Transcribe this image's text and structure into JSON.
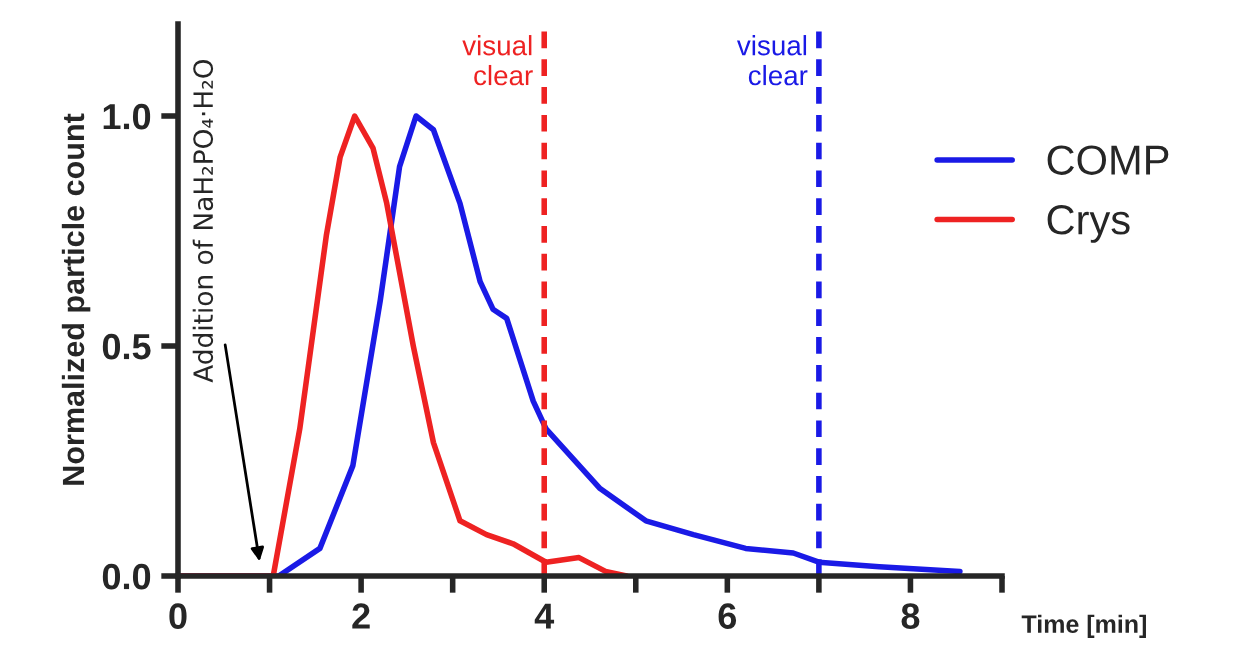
{
  "chart_data": {
    "type": "line",
    "xlabel": "Time [min]",
    "ylabel": "Normalized particle count",
    "xlim": [
      0,
      9
    ],
    "ylim": [
      0,
      1.2
    ],
    "xticks": [
      0,
      {
        "value": 1,
        "label": null
      },
      2,
      {
        "value": 3,
        "label": null
      },
      4,
      {
        "value": 5,
        "label": null
      },
      6,
      {
        "value": 7,
        "label": null
      },
      8,
      {
        "value": 9,
        "label": null
      }
    ],
    "yticks": [
      {
        "value": 0,
        "label": "0.0"
      },
      0.5,
      {
        "value": 1,
        "label": "1.0"
      }
    ],
    "legend": "top right",
    "grid": false,
    "marker": "none",
    "line_style": "solid",
    "series": [
      {
        "name": "COMP",
        "color": "#1a1ae6",
        "x": [
          0,
          1.1,
          1.55,
          1.91,
          2.21,
          2.42,
          2.6,
          2.79,
          3.08,
          3.3,
          3.44,
          3.59,
          3.88,
          4.02,
          4.61,
          5.11,
          5.63,
          6.2,
          6.72,
          7.0,
          7.66,
          8.54
        ],
        "values": [
          0,
          0,
          0.06,
          0.24,
          0.6,
          0.89,
          1.0,
          0.97,
          0.81,
          0.64,
          0.58,
          0.56,
          0.38,
          0.32,
          0.19,
          0.12,
          0.09,
          0.06,
          0.05,
          0.03,
          0.02,
          0.01
        ]
      },
      {
        "name": "Crys",
        "color": "#ee2222",
        "x": [
          0,
          1.04,
          1.33,
          1.62,
          1.77,
          1.93,
          2.13,
          2.28,
          2.57,
          2.79,
          3.08,
          3.37,
          3.66,
          4.02,
          4.38,
          4.67,
          4.9
        ],
        "values": [
          0,
          0,
          0.32,
          0.74,
          0.91,
          1.0,
          0.93,
          0.81,
          0.5,
          0.29,
          0.12,
          0.09,
          0.07,
          0.03,
          0.04,
          0.01,
          0
        ]
      }
    ],
    "ref_lines": [
      {
        "axis": "x",
        "value": 4,
        "label": "visual\nclear",
        "color": "#ee2222",
        "line_style": "dashed"
      },
      {
        "axis": "x",
        "value": 7,
        "label": "visual\nclear",
        "color": "#1a1ae6",
        "line_style": "dashed"
      }
    ],
    "annotations": [
      {
        "text": "Addition of NaH₂PO₄·H₂O",
        "x": 0.9,
        "y": 0.02
      }
    ]
  }
}
